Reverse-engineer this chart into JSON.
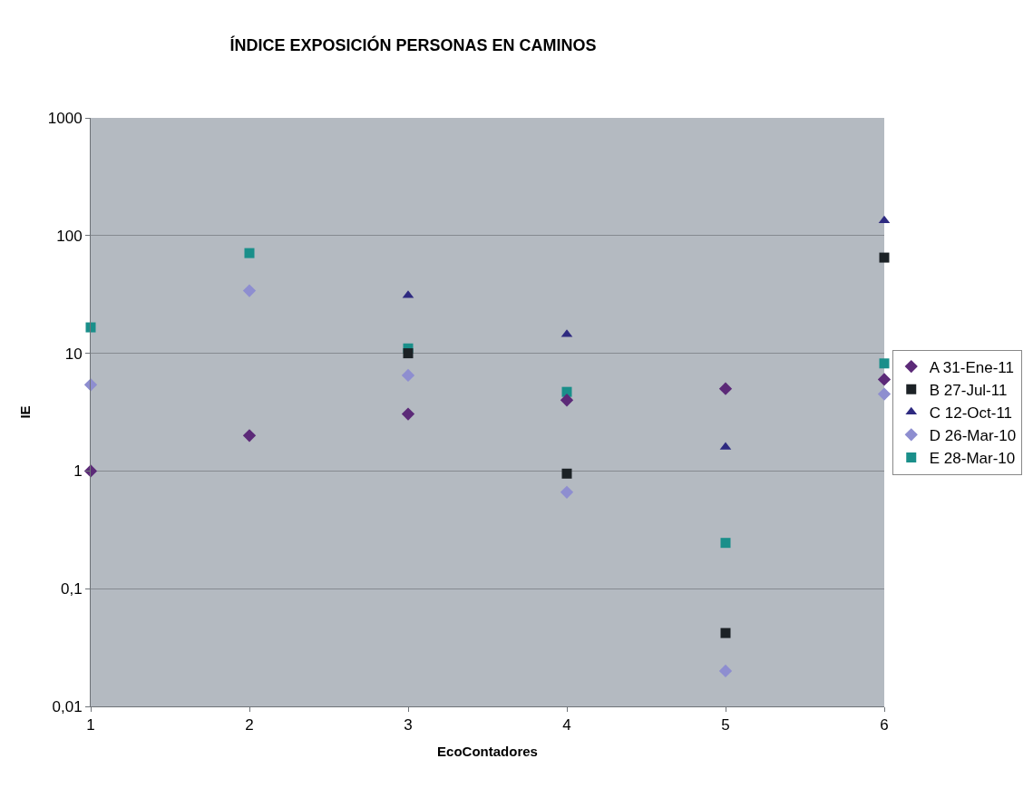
{
  "chart_data": {
    "type": "scatter",
    "title": "ÍNDICE EXPOSICIÓN PERSONAS EN CAMINOS",
    "xlabel": "EcoContadores",
    "ylabel": "IE",
    "x": [
      1,
      2,
      3,
      4,
      5,
      6
    ],
    "series": [
      {
        "name": "A 31-Ene-11",
        "color": "#5c2a78",
        "marker": "diamond",
        "values": [
          1,
          2,
          3.05,
          4,
          5,
          6
        ]
      },
      {
        "name": "B 27-Jul-11",
        "color": "#1c2226",
        "marker": "square",
        "values": [
          null,
          null,
          10,
          0.95,
          0.042,
          65
        ]
      },
      {
        "name": "C 12-Oct-11",
        "color": "#2e2a80",
        "marker": "triangle",
        "values": [
          null,
          null,
          31,
          14.5,
          1.6,
          134
        ]
      },
      {
        "name": "D 26-Mar-10",
        "color": "#8e8ed0",
        "marker": "diamond",
        "values": [
          5.4,
          34,
          6.5,
          0.66,
          0.02,
          4.5
        ]
      },
      {
        "name": "E 28-Mar-10",
        "color": "#1a8f8a",
        "marker": "square",
        "values": [
          16.6,
          71,
          11,
          4.7,
          0.245,
          8.2
        ]
      }
    ],
    "log": "y",
    "xlim": [
      1,
      6
    ],
    "xticks": [
      1,
      2,
      3,
      4,
      5,
      6
    ],
    "ylim": [
      0.01,
      1000
    ],
    "yticks": [
      {
        "value": 0.01,
        "label": "0,01"
      },
      {
        "value": 0.1,
        "label": "0,1"
      },
      1,
      10,
      100,
      1000
    ],
    "grid": "y",
    "legend": "right"
  }
}
